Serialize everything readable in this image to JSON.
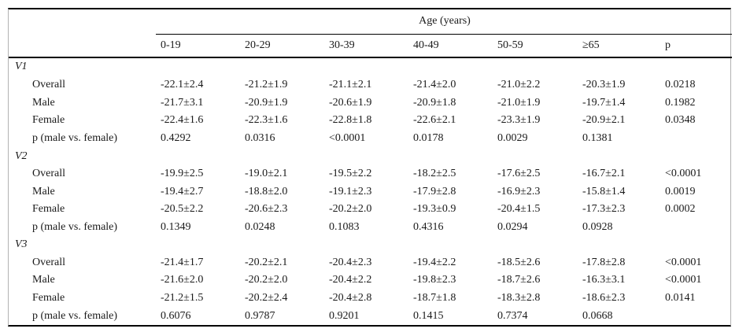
{
  "table": {
    "col_group_header": "Age (years)",
    "columns": [
      "0-19",
      "20-29",
      "30-39",
      "40-49",
      "50-59",
      "≥65",
      "p"
    ],
    "sections": [
      {
        "label": "V1",
        "rows": [
          {
            "label": "Overall",
            "values": [
              "-22.1±2.4",
              "-21.2±1.9",
              "-21.1±2.1",
              "-21.4±2.0",
              "-21.0±2.2",
              "-20.3±1.9",
              "0.0218"
            ]
          },
          {
            "label": "Male",
            "values": [
              "-21.7±3.1",
              "-20.9±1.9",
              "-20.6±1.9",
              "-20.9±1.8",
              "-21.0±1.9",
              "-19.7±1.4",
              "0.1982"
            ]
          },
          {
            "label": "Female",
            "values": [
              "-22.4±1.6",
              "-22.3±1.6",
              "-22.8±1.8",
              "-22.6±2.1",
              "-23.3±1.9",
              "-20.9±2.1",
              "0.0348"
            ]
          },
          {
            "label": "p (male vs. female)",
            "values": [
              "0.4292",
              "0.0316",
              "<0.0001",
              "0.0178",
              "0.0029",
              "0.1381",
              ""
            ]
          }
        ]
      },
      {
        "label": "V2",
        "rows": [
          {
            "label": "Overall",
            "values": [
              "-19.9±2.5",
              "-19.0±2.1",
              "-19.5±2.2",
              "-18.2±2.5",
              "-17.6±2.5",
              "-16.7±2.1",
              "<0.0001"
            ]
          },
          {
            "label": "Male",
            "values": [
              "-19.4±2.7",
              "-18.8±2.0",
              "-19.1±2.3",
              "-17.9±2.8",
              "-16.9±2.3",
              "-15.8±1.4",
              "0.0019"
            ]
          },
          {
            "label": "Female",
            "values": [
              "-20.5±2.2",
              "-20.6±2.3",
              "-20.2±2.0",
              "-19.3±0.9",
              "-20.4±1.5",
              "-17.3±2.3",
              "0.0002"
            ]
          },
          {
            "label": "p (male vs. female)",
            "values": [
              "0.1349",
              "0.0248",
              "0.1083",
              "0.4316",
              "0.0294",
              "0.0928",
              ""
            ]
          }
        ]
      },
      {
        "label": "V3",
        "rows": [
          {
            "label": "Overall",
            "values": [
              "-21.4±1.7",
              "-20.2±2.1",
              "-20.4±2.3",
              "-19.4±2.2",
              "-18.5±2.6",
              "-17.8±2.8",
              "<0.0001"
            ]
          },
          {
            "label": "Male",
            "values": [
              "-21.6±2.0",
              "-20.2±2.0",
              "-20.4±2.2",
              "-19.8±2.3",
              "-18.7±2.6",
              "-16.3±3.1",
              "<0.0001"
            ]
          },
          {
            "label": "Female",
            "values": [
              "-21.2±1.5",
              "-20.2±2.4",
              "-20.4±2.8",
              "-18.7±1.8",
              "-18.3±2.8",
              "-18.6±2.3",
              "0.0141"
            ]
          },
          {
            "label": "p (male vs. female)",
            "values": [
              "0.6076",
              "0.9787",
              "0.9201",
              "0.1415",
              "0.7374",
              "0.0668",
              ""
            ]
          }
        ]
      }
    ]
  }
}
